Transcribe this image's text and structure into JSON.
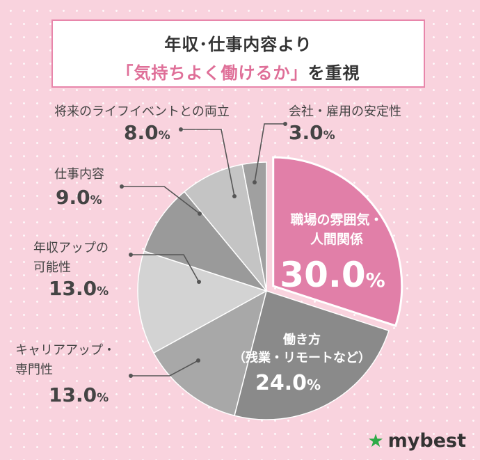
{
  "title": {
    "line1": "年収･仕事内容より",
    "line2_highlight": "「気持ちよく働けるか」",
    "line2_rest": "を重視"
  },
  "brand": {
    "name": "mybest",
    "icon": "star-icon",
    "icon_color": "#2eaa47"
  },
  "chart_data": {
    "type": "pie",
    "unit": "%",
    "start_angle_deg": 0,
    "direction": "clockwise",
    "slices": [
      {
        "label": "職場の雰囲気・\n人間関係",
        "value": 30.0,
        "value_text": "30.0",
        "color": "#e17fa8",
        "exploded": true,
        "label_inside": true
      },
      {
        "label": "働き方\n（残業・リモートなど）",
        "value": 24.0,
        "value_text": "24.0",
        "color": "#8a8a8a",
        "label_inside": true
      },
      {
        "label": "キャリアアップ・\n専門性",
        "value": 13.0,
        "value_text": "13.0",
        "color": "#a8a8a8"
      },
      {
        "label": "年収アップの\n可能性",
        "value": 13.0,
        "value_text": "13.0",
        "color": "#d3d3d3"
      },
      {
        "label": "仕事内容",
        "value": 9.0,
        "value_text": "9.0",
        "color": "#9a9a9a"
      },
      {
        "label": "将来のライフイベントとの両立",
        "value": 8.0,
        "value_text": "8.0",
        "color": "#c4c4c4"
      },
      {
        "label": "会社・雇用の安定性",
        "value": 3.0,
        "value_text": "3.0",
        "color": "#a0a0a0"
      }
    ]
  }
}
